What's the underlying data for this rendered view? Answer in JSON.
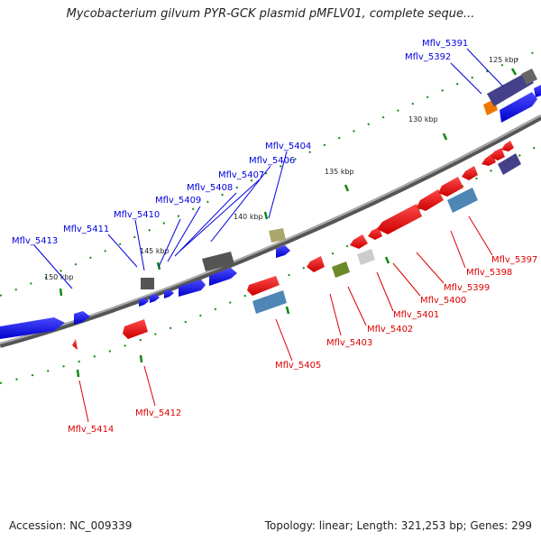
{
  "title": "Mycobacterium gilvum PYR-GCK plasmid pMFLV01, complete seque...",
  "footer": {
    "accession_label": "Accession: NC_009339",
    "summary": "Topology: linear; Length: 321,253 bp; Genes: 299"
  },
  "scale_labels": [
    "125 kbp",
    "130 kbp",
    "135 kbp",
    "140 kbp",
    "145 kbp",
    "150 kbp"
  ],
  "colors": {
    "forward_strand": "#0000ee",
    "reverse_strand": "#ee0000",
    "backbone": "#888888",
    "tick": "#118811"
  },
  "genes": [
    {
      "name": "Mflv_5391",
      "strand": "forward"
    },
    {
      "name": "Mflv_5392",
      "strand": "forward"
    },
    {
      "name": "Mflv_5404",
      "strand": "forward"
    },
    {
      "name": "Mflv_5406",
      "strand": "forward"
    },
    {
      "name": "Mflv_5407",
      "strand": "forward"
    },
    {
      "name": "Mflv_5408",
      "strand": "forward"
    },
    {
      "name": "Mflv_5409",
      "strand": "forward"
    },
    {
      "name": "Mflv_5410",
      "strand": "forward"
    },
    {
      "name": "Mflv_5411",
      "strand": "forward"
    },
    {
      "name": "Mflv_5413",
      "strand": "forward"
    },
    {
      "name": "Mflv_5397",
      "strand": "reverse"
    },
    {
      "name": "Mflv_5398",
      "strand": "reverse"
    },
    {
      "name": "Mflv_5399",
      "strand": "reverse"
    },
    {
      "name": "Mflv_5400",
      "strand": "reverse"
    },
    {
      "name": "Mflv_5401",
      "strand": "reverse"
    },
    {
      "name": "Mflv_5402",
      "strand": "reverse"
    },
    {
      "name": "Mflv_5403",
      "strand": "reverse"
    },
    {
      "name": "Mflv_5405",
      "strand": "reverse"
    },
    {
      "name": "Mflv_5412",
      "strand": "reverse"
    },
    {
      "name": "Mflv_5414",
      "strand": "reverse"
    }
  ]
}
